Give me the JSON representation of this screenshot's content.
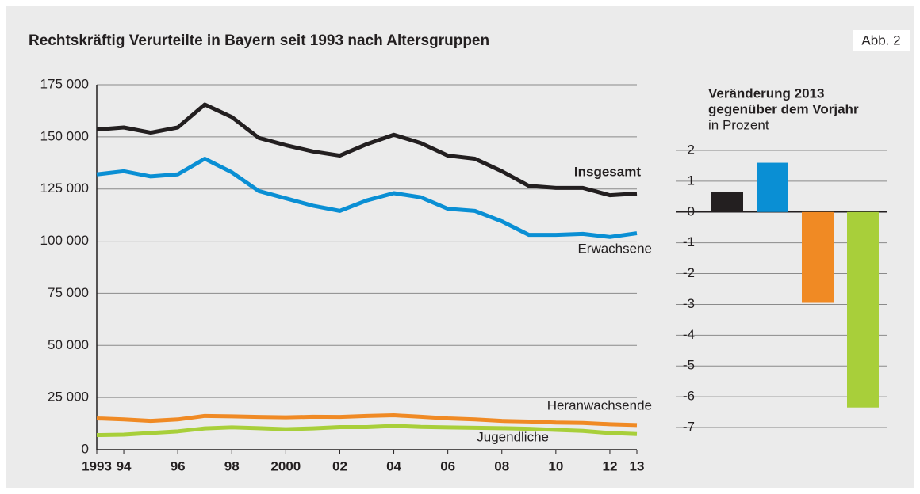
{
  "badge": "Abb. 2",
  "chart_data": [
    {
      "type": "line",
      "title": "Rechtskräftig Verurteilte in Bayern seit 1993 nach Altersgruppen",
      "x": [
        1993,
        1994,
        1995,
        1996,
        1997,
        1998,
        1999,
        2000,
        2001,
        2002,
        2003,
        2004,
        2005,
        2006,
        2007,
        2008,
        2009,
        2010,
        2011,
        2012,
        2013
      ],
      "series": [
        {
          "name": "Insgesamt",
          "color": "#231f20",
          "values": [
            153500,
            154500,
            152000,
            154500,
            165500,
            159500,
            149500,
            146000,
            143000,
            141000,
            146500,
            151000,
            147000,
            141000,
            139500,
            133500,
            126500,
            125500,
            125500,
            122000,
            122800
          ]
        },
        {
          "name": "Erwachsene",
          "color": "#0a8fd4",
          "values": [
            132000,
            133500,
            131000,
            132000,
            139500,
            133000,
            124000,
            120500,
            117000,
            114500,
            119500,
            123000,
            121000,
            115500,
            114500,
            109500,
            103000,
            103000,
            103500,
            102000,
            103800
          ]
        },
        {
          "name": "Heranwachsende",
          "color": "#f08a24",
          "values": [
            15000,
            14500,
            13800,
            14500,
            16200,
            16000,
            15700,
            15500,
            15800,
            15700,
            16200,
            16500,
            15800,
            15000,
            14500,
            13800,
            13500,
            13000,
            12800,
            12200,
            11800
          ]
        },
        {
          "name": "Jugendliche",
          "color": "#a8cf3a",
          "values": [
            7000,
            7200,
            8000,
            8800,
            10200,
            10700,
            10300,
            9800,
            10200,
            10800,
            10800,
            11400,
            10900,
            10700,
            10500,
            10300,
            10000,
            9500,
            9000,
            8000,
            7500
          ]
        }
      ],
      "xlim": [
        1993,
        2013
      ],
      "xticks": [
        1993,
        {
          "value": 1994,
          "label": "94"
        },
        {
          "value": 1996,
          "label": "96"
        },
        {
          "value": 1998,
          "label": "98"
        },
        2000,
        {
          "value": 2002,
          "label": "02"
        },
        {
          "value": 2004,
          "label": "04"
        },
        {
          "value": 2006,
          "label": "06"
        },
        {
          "value": 2008,
          "label": "08"
        },
        {
          "value": 2010,
          "label": "10"
        },
        {
          "value": 2012,
          "label": "12"
        },
        {
          "value": 2013,
          "label": "13"
        }
      ],
      "ylim": [
        0,
        175000
      ],
      "yticks": [
        0,
        {
          "value": 25000,
          "label": "25 000"
        },
        {
          "value": 50000,
          "label": "50 000"
        },
        {
          "value": 75000,
          "label": "75 000"
        },
        {
          "value": 100000,
          "label": "100 000"
        },
        {
          "value": 125000,
          "label": "125 000"
        },
        {
          "value": 150000,
          "label": "150 000"
        },
        {
          "value": 175000,
          "label": "175 000"
        }
      ],
      "grid": true
    },
    {
      "type": "bar",
      "title": [
        "Veränderung 2013",
        "gegenüber dem Vorjahr"
      ],
      "subtitle": "in Prozent",
      "categories": [
        null,
        null,
        null,
        null
      ],
      "values": [
        0.65,
        1.6,
        -2.95,
        -6.35
      ],
      "colors": [
        "#231f20",
        "#0a8fd4",
        "#f08a24",
        "#a8cf3a"
      ],
      "ylim": [
        -7,
        2
      ],
      "yticks": [
        2,
        1,
        0,
        -1,
        -2,
        -3,
        -4,
        -5,
        -6,
        -7
      ],
      "grid": true
    }
  ]
}
